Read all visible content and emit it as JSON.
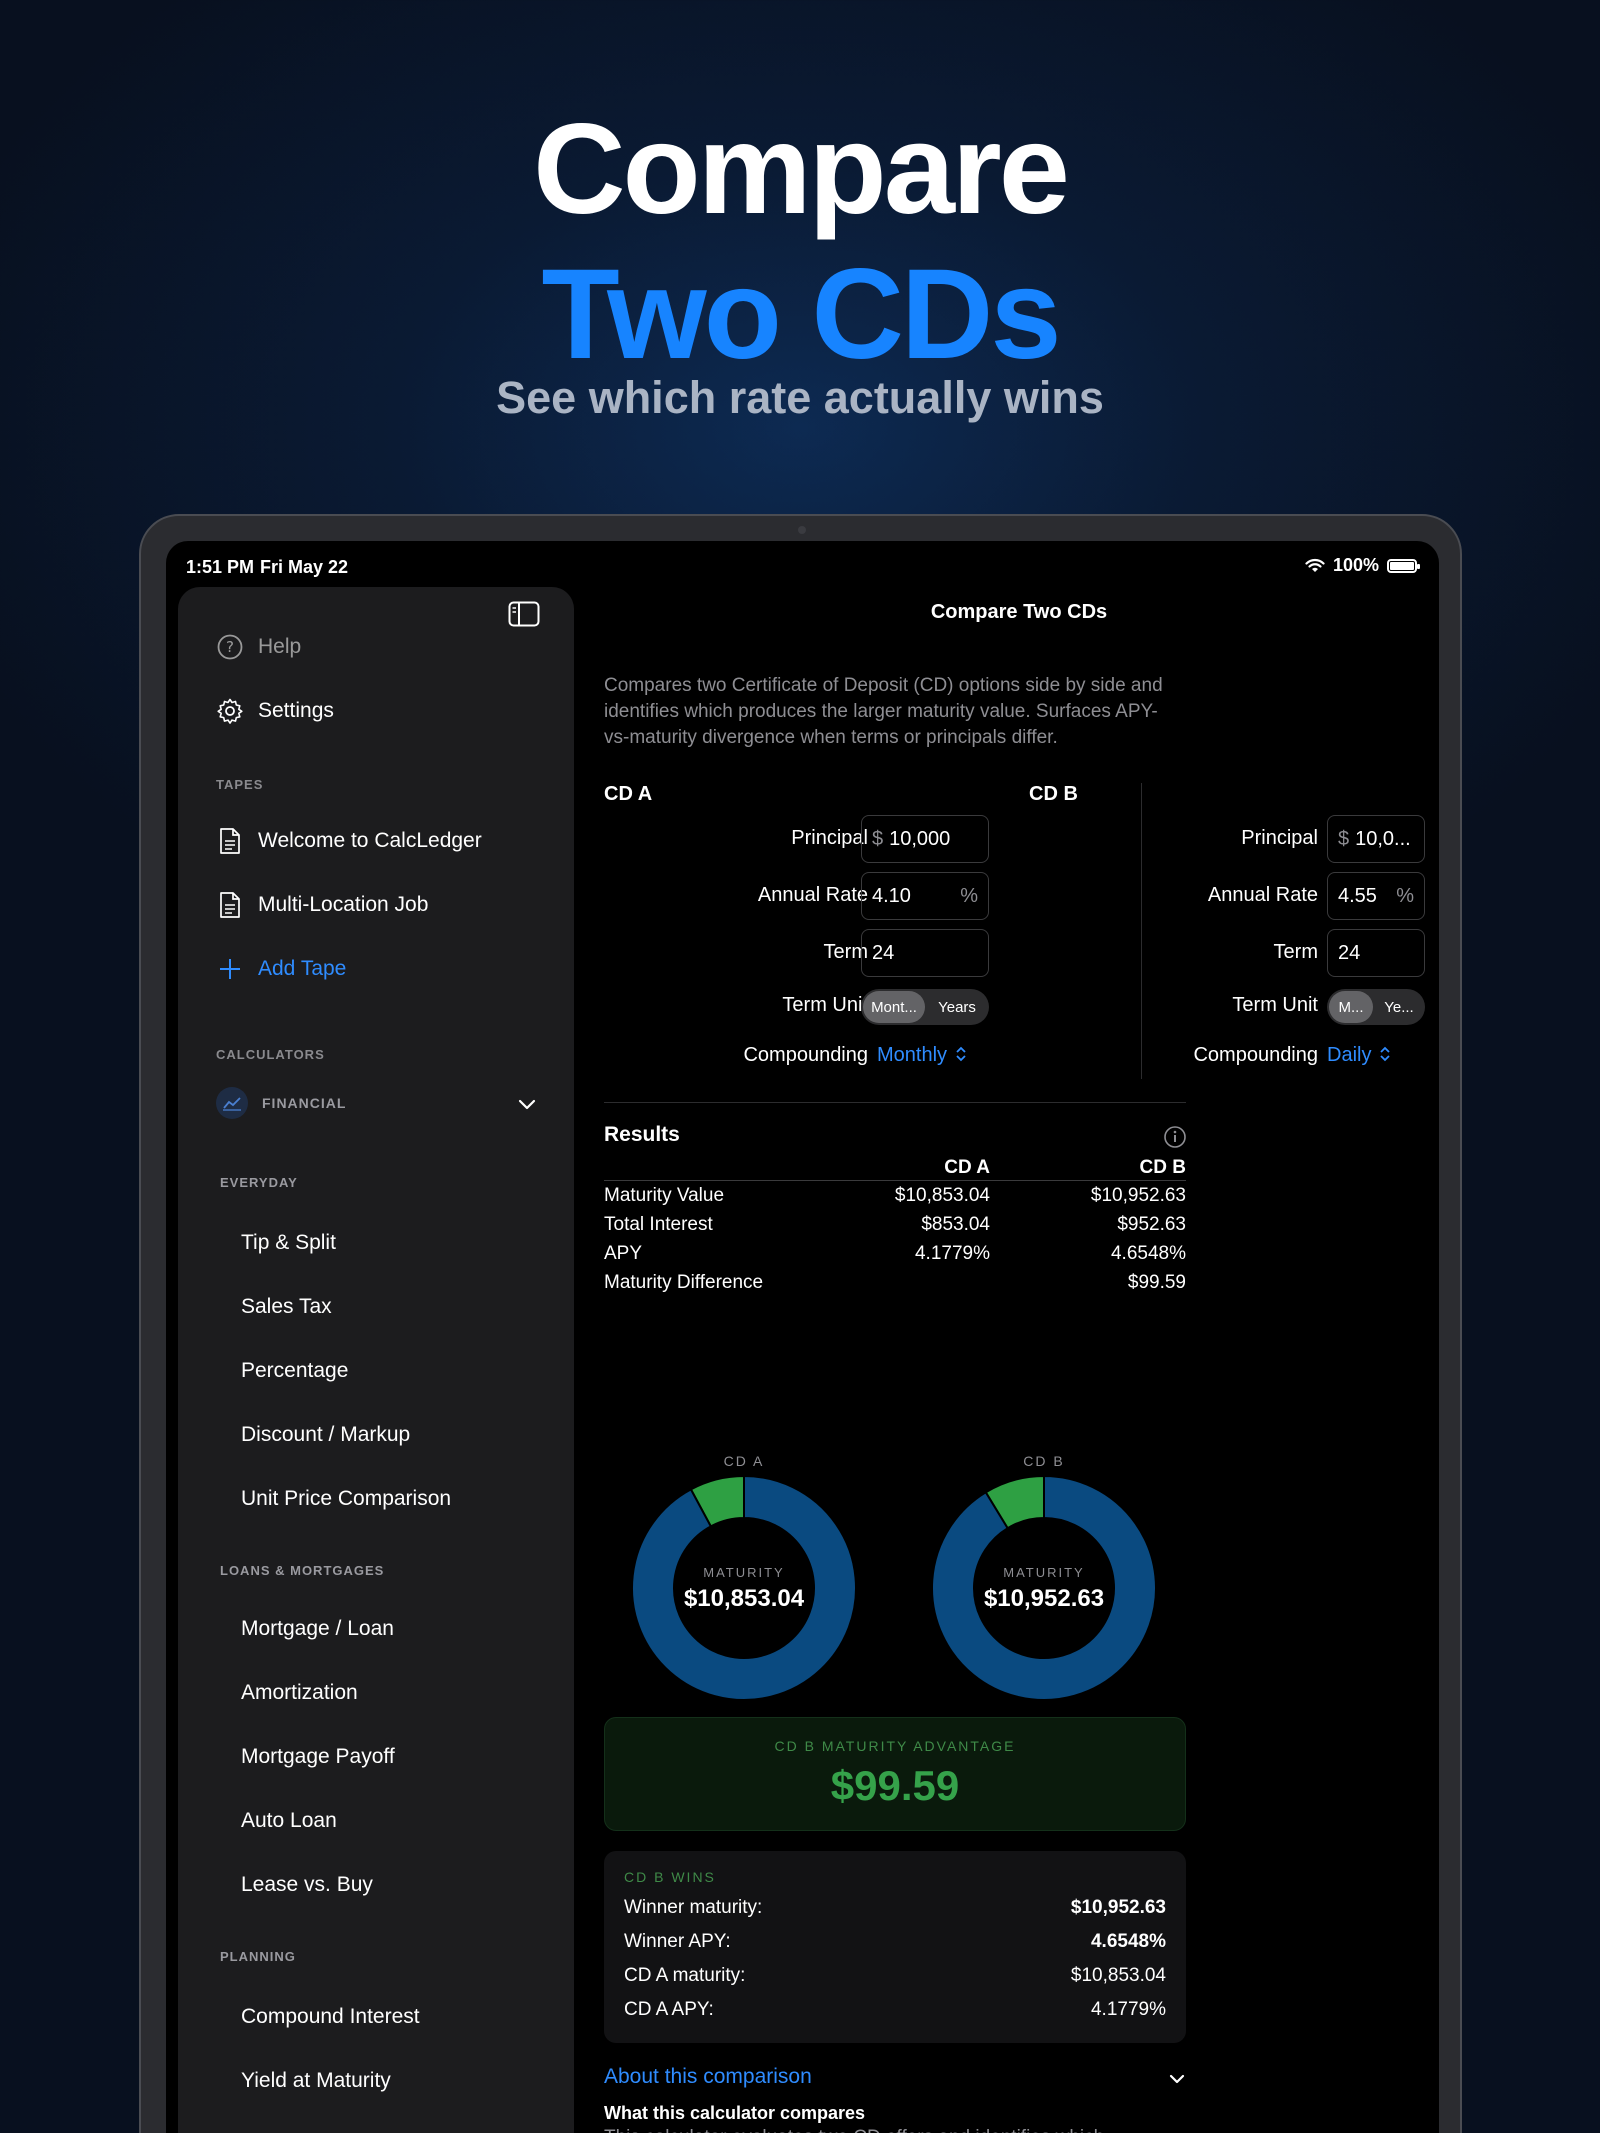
{
  "hero": {
    "line1": "Compare",
    "line2": "Two CDs",
    "subtitle": "See which rate actually wins"
  },
  "status_bar": {
    "time": "1:51 PM",
    "date": "Fri May 22",
    "battery": "100%"
  },
  "sidebar": {
    "help": "Help",
    "settings": "Settings",
    "tapes_header": "TAPES",
    "tapes": [
      "Welcome to CalcLedger",
      "Multi-Location Job"
    ],
    "add_tape": "Add Tape",
    "calculators_header": "CALCULATORS",
    "financial": "FINANCIAL",
    "everyday_header": "EVERYDAY",
    "everyday": [
      "Tip & Split",
      "Sales Tax",
      "Percentage",
      "Discount / Markup",
      "Unit Price Comparison"
    ],
    "loans_header": "LOANS & MORTGAGES",
    "loans": [
      "Mortgage / Loan",
      "Amortization",
      "Mortgage Payoff",
      "Auto Loan",
      "Lease vs. Buy"
    ],
    "planning_header": "PLANNING",
    "planning": [
      "Compound Interest",
      "Yield at Maturity"
    ]
  },
  "main": {
    "title": "Compare Two CDs",
    "description": "Compares two Certificate of Deposit (CD) options side by side and identifies which produces the larger maturity value. Surfaces APY-vs-maturity divergence when terms or principals differ.",
    "labels": {
      "principal": "Principal",
      "annual_rate": "Annual Rate",
      "term": "Term",
      "term_unit": "Term Unit",
      "compounding": "Compounding",
      "currency_prefix": "$",
      "percent_suffix": "%"
    },
    "cd_a": {
      "label": "CD A",
      "principal": "10,000",
      "annual_rate": "4.10",
      "term": "24",
      "unit_selected": "Mont...",
      "unit_other": "Years",
      "compounding": "Monthly"
    },
    "cd_b": {
      "label": "CD B",
      "principal": "10,0...",
      "annual_rate": "4.55",
      "term": "24",
      "unit_selected": "M...",
      "unit_other": "Ye...",
      "compounding": "Daily"
    },
    "results": {
      "title": "Results",
      "col_a": "CD A",
      "col_b": "CD B",
      "rows": [
        {
          "label": "Maturity Value",
          "a": "$10,853.04",
          "b": "$10,952.63"
        },
        {
          "label": "Total Interest",
          "a": "$853.04",
          "b": "$952.63"
        },
        {
          "label": "APY",
          "a": "4.1779%",
          "b": "4.6548%"
        },
        {
          "label": "Maturity Difference",
          "a": "",
          "b": "$99.59"
        }
      ]
    },
    "donuts": {
      "center_label": "MATURITY",
      "a": {
        "caption": "CD A",
        "value": "$10,853.04",
        "principal": 10000,
        "interest": 853.04
      },
      "b": {
        "caption": "CD B",
        "value": "$10,952.63",
        "principal": 10000,
        "interest": 952.63
      },
      "colors": {
        "principal": "#0a4a80",
        "interest": "#2ea043"
      }
    },
    "advantage": {
      "caption": "CD B MATURITY ADVANTAGE",
      "value": "$99.59"
    },
    "winner": {
      "caption": "CD B WINS",
      "rows": [
        {
          "label": "Winner maturity:",
          "value": "$10,952.63"
        },
        {
          "label": "Winner APY:",
          "value": "4.6548%"
        },
        {
          "label": "CD A maturity:",
          "value": "$10,853.04"
        },
        {
          "label": "CD A APY:",
          "value": "4.1779%"
        }
      ]
    },
    "about": {
      "link": "About this comparison",
      "heading": "What this calculator compares",
      "body": "This calculator evaluates two CD offers and identifies which produces the larger dollar amount at maturity. Each CD is modeled as a single deposit at a fixed rate and term with no early withdrawals."
    }
  },
  "colors": {
    "accent": "#1784ff",
    "link": "#2f8cff",
    "win_green": "#35a24a"
  }
}
